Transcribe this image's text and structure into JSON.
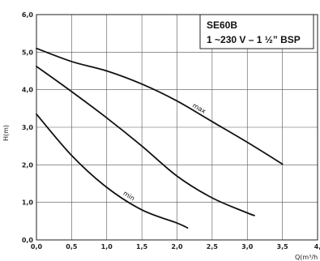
{
  "chart_data": {
    "type": "line",
    "title": "SE60B",
    "subtitle": "1 ~230 V – 1 ½” BSP",
    "xlabel": "Q(m³/h",
    "ylabel": "H(m)",
    "xlim": [
      0,
      4
    ],
    "ylim": [
      0,
      6
    ],
    "grid": true,
    "x_ticks": [
      "0,0",
      "0,5",
      "1,0",
      "1,5",
      "2,0",
      "2,5",
      "3,0",
      "3,5",
      "4,"
    ],
    "y_ticks": [
      "0,0",
      "1,0",
      "2,0",
      "3,0",
      "4,0",
      "5,0",
      "6,0"
    ],
    "series": [
      {
        "name": "max",
        "color": "#111111",
        "points": [
          [
            0.0,
            5.1
          ],
          [
            0.5,
            4.75
          ],
          [
            1.0,
            4.5
          ],
          [
            1.5,
            4.15
          ],
          [
            2.0,
            3.7
          ],
          [
            2.5,
            3.15
          ],
          [
            3.0,
            2.6
          ],
          [
            3.5,
            2.02
          ]
        ]
      },
      {
        "name": "",
        "color": "#111111",
        "points": [
          [
            0.0,
            4.62
          ],
          [
            0.5,
            3.95
          ],
          [
            1.0,
            3.25
          ],
          [
            1.5,
            2.5
          ],
          [
            2.0,
            1.7
          ],
          [
            2.5,
            1.12
          ],
          [
            3.0,
            0.72
          ],
          [
            3.1,
            0.65
          ]
        ]
      },
      {
        "name": "min",
        "color": "#111111",
        "points": [
          [
            0.0,
            3.35
          ],
          [
            0.5,
            2.25
          ],
          [
            1.0,
            1.4
          ],
          [
            1.5,
            0.8
          ],
          [
            2.0,
            0.45
          ],
          [
            2.15,
            0.32
          ]
        ]
      }
    ]
  }
}
